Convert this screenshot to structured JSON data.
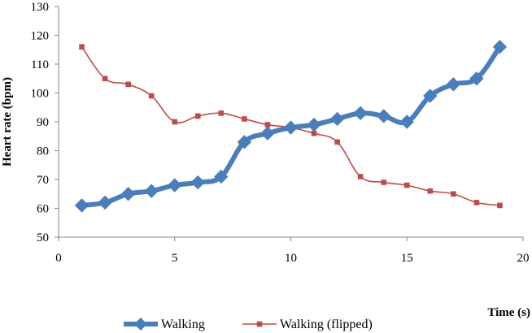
{
  "chart_data": {
    "type": "line",
    "title": "",
    "xlabel": "Time (s)",
    "ylabel": "Heart rate (bpm)",
    "xlim": [
      0,
      20
    ],
    "ylim": [
      50,
      130
    ],
    "xticks": [
      0,
      5,
      10,
      15,
      20
    ],
    "yticks": [
      50,
      60,
      70,
      80,
      90,
      100,
      110,
      120,
      130
    ],
    "grid": false,
    "legend_position": "bottom",
    "series": [
      {
        "name": "Walking",
        "color": "#4A7EBB",
        "marker": "diamond",
        "x": [
          1,
          2,
          3,
          4,
          5,
          6,
          7,
          8,
          9,
          10,
          11,
          12,
          13,
          14,
          15,
          16,
          17,
          18,
          19
        ],
        "values": [
          61,
          62,
          65,
          66,
          68,
          69,
          71,
          83,
          86,
          88,
          89,
          91,
          93,
          92,
          90,
          99,
          103,
          105,
          116
        ]
      },
      {
        "name": "Walking (flipped)",
        "color": "#BE4B48",
        "marker": "square",
        "x": [
          1,
          2,
          3,
          4,
          5,
          6,
          7,
          8,
          9,
          10,
          11,
          12,
          13,
          14,
          15,
          16,
          17,
          18,
          19
        ],
        "values": [
          116,
          105,
          103,
          99,
          90,
          92,
          93,
          91,
          89,
          88,
          86,
          83,
          71,
          69,
          68,
          66,
          65,
          62,
          61
        ]
      }
    ]
  }
}
